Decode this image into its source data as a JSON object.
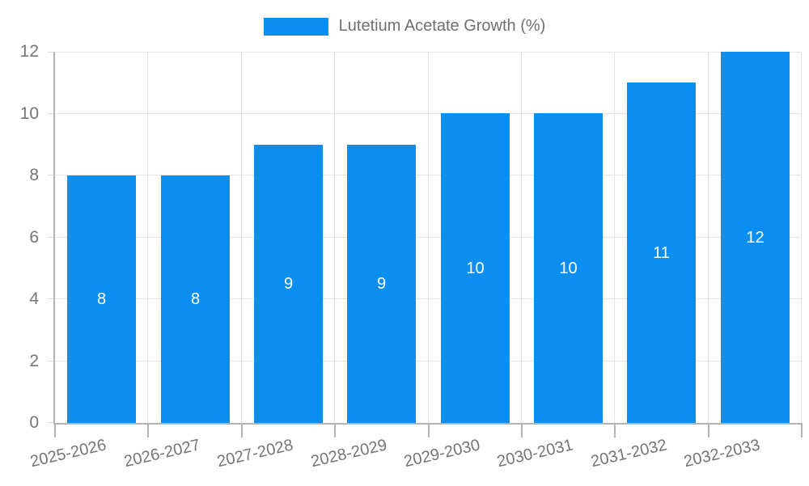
{
  "legend": {
    "label": "Lutetium Acetate Growth (%)"
  },
  "chart_data": {
    "type": "bar",
    "title": "",
    "series_name": "Lutetium Acetate Growth (%)",
    "categories": [
      "2025-2026",
      "2026-2027",
      "2027-2028",
      "2028-2029",
      "2029-2030",
      "2030-2031",
      "2031-2032",
      "2032-2033"
    ],
    "values": [
      8,
      8,
      9,
      9,
      10,
      10,
      11,
      12
    ],
    "bar_value_labels": [
      "8",
      "8",
      "9",
      "9",
      "10",
      "10",
      "11",
      "12"
    ],
    "xlabel": "",
    "ylabel": "",
    "ylim": [
      0,
      12
    ],
    "yticks": [
      0,
      2,
      4,
      6,
      8,
      10,
      12
    ],
    "grid": true,
    "legend_position": "top",
    "x_label_rotation_deg": -13
  },
  "colors": {
    "bar": "#0a8ff0",
    "bar_label_text": "#ffffff",
    "grid": "#e4e4e4",
    "axis": "#b3b3b3",
    "left_tick": "#d9d9d9",
    "bottom_tick": "#b3b3b3",
    "tick_text": "#757575",
    "legend_text": "#6f6f6f",
    "background": "#ffffff"
  }
}
